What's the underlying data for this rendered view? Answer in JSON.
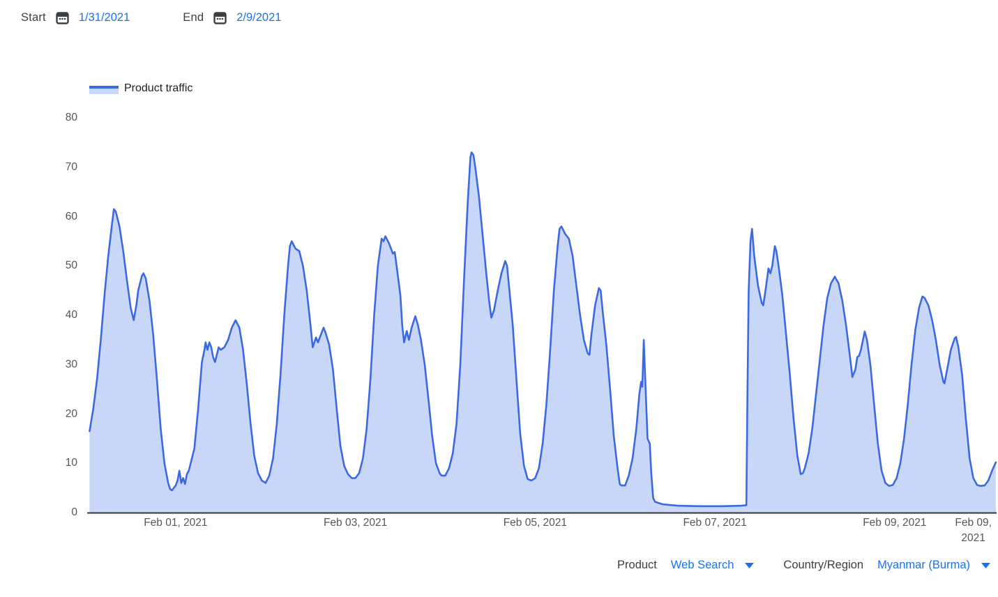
{
  "header": {
    "start_label": "Start",
    "start_date": "1/31/2021",
    "end_label": "End",
    "end_date": "2/9/2021"
  },
  "legend": {
    "label": "Product traffic"
  },
  "footer": {
    "product_label": "Product",
    "product_value": "Web Search",
    "region_label": "Country/Region",
    "region_value": "Myanmar (Burma)"
  },
  "colors": {
    "line": "#3c69e1",
    "fill": "#c8d6f8",
    "link": "#1a73e8",
    "axis": "#333333",
    "tick_text": "#565656",
    "label_text": "#3c4043"
  },
  "icons": {
    "calendar": "calendar-icon",
    "caret": "chevron-down-icon"
  },
  "chart_data": {
    "type": "area",
    "series_name": "Product traffic",
    "xlabel": "",
    "ylabel": "",
    "x_unit": "hours since Jan 31, 2021 00:00",
    "ylim": [
      0,
      80
    ],
    "grid": false,
    "legend_position": "top-left",
    "y_ticks": [
      0,
      10,
      20,
      30,
      40,
      50,
      60,
      70,
      80
    ],
    "x_ticks": [
      {
        "label": "Feb 01, 2021",
        "hour": 24
      },
      {
        "label": "Feb 03, 2021",
        "hour": 72
      },
      {
        "label": "Feb 05, 2021",
        "hour": 120
      },
      {
        "label": "Feb 07, 2021",
        "hour": 168
      },
      {
        "label": "Feb 09, 2021",
        "hour": 216
      },
      {
        "label": "Feb 09,\n2021",
        "hour": 237
      }
    ],
    "points": [
      [
        1,
        16.5
      ],
      [
        2,
        21
      ],
      [
        3,
        27
      ],
      [
        4,
        35
      ],
      [
        5,
        44
      ],
      [
        6,
        52
      ],
      [
        7,
        58.5
      ],
      [
        7.5,
        61.5
      ],
      [
        8,
        61
      ],
      [
        9,
        58
      ],
      [
        10,
        53
      ],
      [
        11,
        47
      ],
      [
        12,
        41.5
      ],
      [
        12.8,
        39
      ],
      [
        13.5,
        42
      ],
      [
        14,
        45
      ],
      [
        15,
        48
      ],
      [
        15.4,
        48.5
      ],
      [
        16,
        47.5
      ],
      [
        17,
        43
      ],
      [
        18,
        36
      ],
      [
        19,
        27
      ],
      [
        20,
        17
      ],
      [
        21,
        10
      ],
      [
        22,
        6
      ],
      [
        22.5,
        4.8
      ],
      [
        23,
        4.5
      ],
      [
        24,
        5.5
      ],
      [
        24.5,
        6.5
      ],
      [
        25,
        8.5
      ],
      [
        25.5,
        6
      ],
      [
        26,
        7
      ],
      [
        26.5,
        5.8
      ],
      [
        27,
        7.8
      ],
      [
        27.5,
        8.5
      ],
      [
        28,
        10
      ],
      [
        29,
        13
      ],
      [
        30,
        21
      ],
      [
        31,
        30.5
      ],
      [
        31.7,
        33
      ],
      [
        32,
        34.5
      ],
      [
        32.5,
        33
      ],
      [
        33,
        34.5
      ],
      [
        33.5,
        33.5
      ],
      [
        34,
        31.5
      ],
      [
        34.5,
        30.5
      ],
      [
        35,
        32
      ],
      [
        35.5,
        33.5
      ],
      [
        36,
        33
      ],
      [
        37,
        33.5
      ],
      [
        38,
        35
      ],
      [
        39,
        37.5
      ],
      [
        40,
        39
      ],
      [
        41,
        37.5
      ],
      [
        42,
        33
      ],
      [
        43,
        26
      ],
      [
        44,
        18
      ],
      [
        45,
        11.5
      ],
      [
        46,
        8
      ],
      [
        47,
        6.5
      ],
      [
        48,
        6
      ],
      [
        49,
        7.5
      ],
      [
        50,
        11
      ],
      [
        51,
        18
      ],
      [
        52,
        28
      ],
      [
        53,
        40
      ],
      [
        54,
        50
      ],
      [
        54.5,
        54
      ],
      [
        55,
        55
      ],
      [
        56,
        53.5
      ],
      [
        57,
        53
      ],
      [
        58,
        50
      ],
      [
        59,
        45
      ],
      [
        60,
        38
      ],
      [
        60.6,
        33.5
      ],
      [
        61.5,
        35.5
      ],
      [
        62,
        34.5
      ],
      [
        63,
        36.5
      ],
      [
        63.5,
        37.5
      ],
      [
        64,
        36.5
      ],
      [
        65,
        34
      ],
      [
        66,
        29
      ],
      [
        67,
        21
      ],
      [
        68,
        13.5
      ],
      [
        69,
        9.5
      ],
      [
        70,
        7.8
      ],
      [
        71,
        7
      ],
      [
        72,
        7
      ],
      [
        73,
        8
      ],
      [
        74,
        11
      ],
      [
        75,
        17
      ],
      [
        76,
        27
      ],
      [
        77,
        40
      ],
      [
        78,
        50
      ],
      [
        79,
        55.5
      ],
      [
        79.5,
        55
      ],
      [
        80,
        56
      ],
      [
        81,
        54.5
      ],
      [
        82,
        52.5
      ],
      [
        82.5,
        52.8
      ],
      [
        83,
        50
      ],
      [
        84,
        44
      ],
      [
        84.5,
        38
      ],
      [
        85,
        34.5
      ],
      [
        85.7,
        36.8
      ],
      [
        86.3,
        35
      ],
      [
        87,
        37.5
      ],
      [
        88,
        39.8
      ],
      [
        88.7,
        38
      ],
      [
        89.5,
        35
      ],
      [
        90.5,
        30
      ],
      [
        91.5,
        23
      ],
      [
        92.5,
        15.5
      ],
      [
        93.5,
        10
      ],
      [
        94.5,
        8
      ],
      [
        95,
        7.5
      ],
      [
        96,
        7.5
      ],
      [
        97,
        9
      ],
      [
        98,
        12
      ],
      [
        99,
        18
      ],
      [
        100,
        30
      ],
      [
        101,
        47
      ],
      [
        102,
        63
      ],
      [
        102.7,
        72
      ],
      [
        103,
        73
      ],
      [
        103.5,
        72.5
      ],
      [
        104,
        70
      ],
      [
        105,
        64
      ],
      [
        106,
        56
      ],
      [
        107,
        48
      ],
      [
        107.7,
        43
      ],
      [
        108.3,
        39.5
      ],
      [
        109,
        41
      ],
      [
        110,
        45
      ],
      [
        111,
        48.5
      ],
      [
        112,
        51
      ],
      [
        112.5,
        50
      ],
      [
        113,
        46
      ],
      [
        114,
        38
      ],
      [
        115,
        27
      ],
      [
        116,
        16
      ],
      [
        117,
        9.5
      ],
      [
        118,
        6.8
      ],
      [
        119,
        6.5
      ],
      [
        120,
        7
      ],
      [
        121,
        9
      ],
      [
        122,
        14
      ],
      [
        123,
        22
      ],
      [
        124,
        33
      ],
      [
        125,
        45
      ],
      [
        126,
        54
      ],
      [
        126.5,
        57.5
      ],
      [
        127,
        58
      ],
      [
        128,
        56.5
      ],
      [
        129,
        55.5
      ],
      [
        130,
        52
      ],
      [
        131,
        46
      ],
      [
        132,
        40
      ],
      [
        133,
        35
      ],
      [
        134,
        32.3
      ],
      [
        134.5,
        32
      ],
      [
        135,
        36
      ],
      [
        136,
        42
      ],
      [
        137,
        45.5
      ],
      [
        137.5,
        45
      ],
      [
        138,
        41
      ],
      [
        139,
        34
      ],
      [
        140,
        25
      ],
      [
        141,
        15.5
      ],
      [
        142,
        9
      ],
      [
        142.6,
        5.8
      ],
      [
        143,
        5.5
      ],
      [
        144,
        5.5
      ],
      [
        145,
        7.5
      ],
      [
        146,
        11
      ],
      [
        147,
        17
      ],
      [
        147.8,
        24
      ],
      [
        148.3,
        26.5
      ],
      [
        148.6,
        25.5
      ],
      [
        149,
        35
      ],
      [
        149.4,
        27
      ],
      [
        150,
        15
      ],
      [
        150.6,
        14
      ],
      [
        151,
        8
      ],
      [
        151.5,
        3
      ],
      [
        152,
        2.2
      ],
      [
        154,
        1.7
      ],
      [
        158,
        1.4
      ],
      [
        164,
        1.3
      ],
      [
        170,
        1.3
      ],
      [
        175,
        1.4
      ],
      [
        176.4,
        1.5
      ],
      [
        176.7,
        25
      ],
      [
        177,
        45
      ],
      [
        177.5,
        55
      ],
      [
        177.9,
        57.5
      ],
      [
        178.5,
        52
      ],
      [
        179.5,
        46
      ],
      [
        180.5,
        42.5
      ],
      [
        180.9,
        42
      ],
      [
        181.5,
        45
      ],
      [
        182.3,
        49.5
      ],
      [
        182.8,
        48.5
      ],
      [
        183.3,
        50
      ],
      [
        184,
        54
      ],
      [
        184.4,
        53
      ],
      [
        185,
        50
      ],
      [
        186,
        44
      ],
      [
        187,
        36
      ],
      [
        188,
        28
      ],
      [
        189,
        19
      ],
      [
        190,
        11.5
      ],
      [
        190.9,
        7.8
      ],
      [
        191.5,
        8
      ],
      [
        192,
        9
      ],
      [
        193,
        12
      ],
      [
        194,
        17
      ],
      [
        195,
        24
      ],
      [
        196,
        31
      ],
      [
        197,
        38
      ],
      [
        198,
        43.5
      ],
      [
        199,
        46.5
      ],
      [
        200,
        47.8
      ],
      [
        201,
        46.5
      ],
      [
        202,
        43
      ],
      [
        203,
        38
      ],
      [
        204,
        32
      ],
      [
        204.7,
        27.5
      ],
      [
        205.5,
        29
      ],
      [
        206,
        31.5
      ],
      [
        206.5,
        31.8
      ],
      [
        207,
        33
      ],
      [
        208,
        36.7
      ],
      [
        208.6,
        35
      ],
      [
        209.5,
        30
      ],
      [
        210.5,
        22
      ],
      [
        211.5,
        14
      ],
      [
        212.5,
        8.5
      ],
      [
        213.5,
        6
      ],
      [
        214.5,
        5.4
      ],
      [
        215.5,
        5.6
      ],
      [
        216.5,
        7
      ],
      [
        217.5,
        10
      ],
      [
        218.5,
        15
      ],
      [
        219.5,
        22
      ],
      [
        220.5,
        30
      ],
      [
        221.5,
        37
      ],
      [
        222.5,
        41.5
      ],
      [
        223.4,
        43.8
      ],
      [
        224,
        43.5
      ],
      [
        225,
        42
      ],
      [
        226,
        39
      ],
      [
        227,
        35
      ],
      [
        228,
        30
      ],
      [
        229,
        26.5
      ],
      [
        229.3,
        26.2
      ],
      [
        230,
        29
      ],
      [
        231,
        33
      ],
      [
        232,
        35.3
      ],
      [
        232.4,
        35.6
      ],
      [
        233,
        33.5
      ],
      [
        234,
        28
      ],
      [
        235,
        19
      ],
      [
        236,
        11
      ],
      [
        237,
        7
      ],
      [
        238,
        5.6
      ],
      [
        238.9,
        5.4
      ],
      [
        240,
        5.5
      ],
      [
        241,
        6.5
      ],
      [
        242,
        8.5
      ],
      [
        243,
        10.2
      ]
    ]
  }
}
